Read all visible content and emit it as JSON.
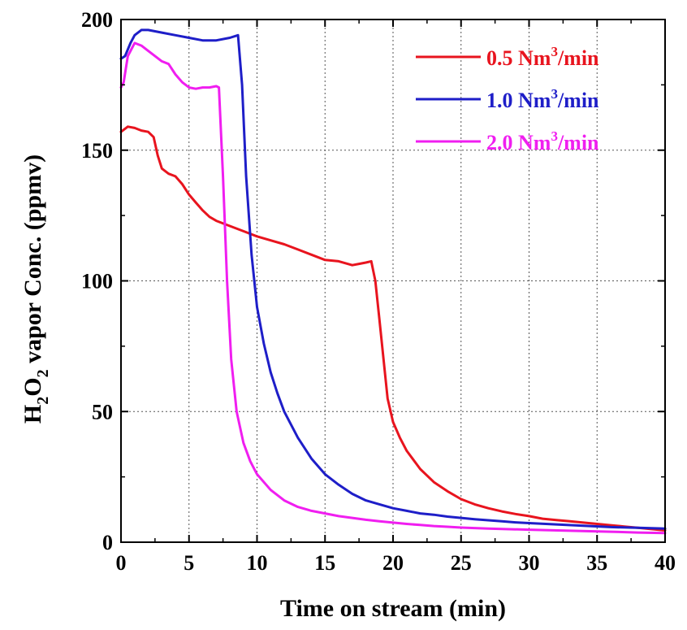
{
  "chart_data": {
    "type": "line",
    "title": "",
    "xlabel": "Time on stream (min)",
    "ylabel": {
      "parts": [
        {
          "text": "H",
          "sub": false
        },
        {
          "text": "2",
          "sub": true
        },
        {
          "text": "O",
          "sub": false
        },
        {
          "text": "2",
          "sub": true
        },
        {
          "text": " vapor Conc. (ppmv)",
          "sub": false
        }
      ],
      "plain": "H2O2 vapor Conc. (ppmv)"
    },
    "xlim": [
      0,
      40
    ],
    "ylim": [
      0,
      200
    ],
    "xticks": [
      0,
      5,
      10,
      15,
      20,
      25,
      30,
      35,
      40
    ],
    "yticks": [
      0,
      50,
      100,
      150,
      200
    ],
    "grid": true,
    "legend_position": "top-right",
    "series": [
      {
        "name": "0.5 Nm3/min",
        "label": {
          "base": "0.5 Nm",
          "sup": "3",
          "tail": "/min"
        },
        "color": "#e8141e",
        "points": [
          [
            0,
            157
          ],
          [
            0.5,
            159
          ],
          [
            1,
            158.5
          ],
          [
            1.5,
            157.5
          ],
          [
            2,
            157
          ],
          [
            2.4,
            155
          ],
          [
            2.7,
            148
          ],
          [
            3,
            143
          ],
          [
            3.5,
            141
          ],
          [
            4,
            140
          ],
          [
            4.5,
            137
          ],
          [
            5,
            133
          ],
          [
            5.5,
            130
          ],
          [
            6,
            127
          ],
          [
            6.5,
            124.5
          ],
          [
            7,
            123
          ],
          [
            8,
            121
          ],
          [
            9,
            119
          ],
          [
            10,
            117
          ],
          [
            11,
            115.5
          ],
          [
            12,
            114
          ],
          [
            13,
            112
          ],
          [
            14,
            110
          ],
          [
            15,
            108
          ],
          [
            16,
            107.5
          ],
          [
            17,
            106
          ],
          [
            17.5,
            106.5
          ],
          [
            18,
            107
          ],
          [
            18.4,
            107.5
          ],
          [
            18.7,
            100
          ],
          [
            19,
            85
          ],
          [
            19.3,
            70
          ],
          [
            19.6,
            55
          ],
          [
            20,
            46
          ],
          [
            20.5,
            40
          ],
          [
            21,
            35
          ],
          [
            22,
            28
          ],
          [
            23,
            23
          ],
          [
            24,
            19.5
          ],
          [
            25,
            16.5
          ],
          [
            26,
            14.5
          ],
          [
            27,
            13
          ],
          [
            28,
            11.8
          ],
          [
            29,
            10.8
          ],
          [
            30,
            10
          ],
          [
            31,
            9
          ],
          [
            32,
            8.5
          ],
          [
            33,
            8
          ],
          [
            34,
            7.5
          ],
          [
            35,
            7
          ],
          [
            36,
            6.5
          ],
          [
            37,
            6
          ],
          [
            38,
            5.5
          ],
          [
            39,
            5
          ],
          [
            40,
            4.5
          ]
        ]
      },
      {
        "name": "1.0 Nm3/min",
        "label": {
          "base": "1.0 Nm",
          "sup": "3",
          "tail": "/min"
        },
        "color": "#1e1ec8",
        "points": [
          [
            0,
            185
          ],
          [
            0.3,
            186
          ],
          [
            0.7,
            191
          ],
          [
            1,
            194
          ],
          [
            1.5,
            196
          ],
          [
            2,
            196
          ],
          [
            3,
            195
          ],
          [
            4,
            194
          ],
          [
            5,
            193
          ],
          [
            6,
            192
          ],
          [
            7,
            192
          ],
          [
            8,
            193
          ],
          [
            8.6,
            194
          ],
          [
            8.9,
            175
          ],
          [
            9.2,
            140
          ],
          [
            9.6,
            110
          ],
          [
            10,
            90
          ],
          [
            10.5,
            76
          ],
          [
            11,
            65
          ],
          [
            11.5,
            57
          ],
          [
            12,
            50
          ],
          [
            13,
            40
          ],
          [
            14,
            32
          ],
          [
            15,
            26
          ],
          [
            16,
            22
          ],
          [
            17,
            18.5
          ],
          [
            18,
            16
          ],
          [
            19,
            14.5
          ],
          [
            20,
            13
          ],
          [
            21,
            12
          ],
          [
            22,
            11
          ],
          [
            23,
            10.5
          ],
          [
            24,
            9.8
          ],
          [
            25,
            9.3
          ],
          [
            26,
            8.8
          ],
          [
            27,
            8.4
          ],
          [
            28,
            8
          ],
          [
            29,
            7.6
          ],
          [
            30,
            7.3
          ],
          [
            32,
            6.8
          ],
          [
            34,
            6.3
          ],
          [
            36,
            5.8
          ],
          [
            38,
            5.5
          ],
          [
            40,
            5.2
          ]
        ]
      },
      {
        "name": "2.0 Nm3/min",
        "label": {
          "base": "2.0 Nm",
          "sup": "3",
          "tail": "/min"
        },
        "color": "#f01ef0",
        "points": [
          [
            0,
            174
          ],
          [
            0.2,
            176
          ],
          [
            0.5,
            186
          ],
          [
            1,
            191
          ],
          [
            1.5,
            190
          ],
          [
            2,
            188
          ],
          [
            3,
            184
          ],
          [
            3.5,
            183
          ],
          [
            4,
            179
          ],
          [
            4.5,
            176
          ],
          [
            5,
            174
          ],
          [
            5.5,
            173.5
          ],
          [
            6,
            174
          ],
          [
            6.5,
            174
          ],
          [
            7,
            174.5
          ],
          [
            7.2,
            174
          ],
          [
            7.5,
            140
          ],
          [
            7.8,
            100
          ],
          [
            8.1,
            70
          ],
          [
            8.5,
            50
          ],
          [
            9,
            38
          ],
          [
            9.5,
            31
          ],
          [
            10,
            26
          ],
          [
            11,
            20
          ],
          [
            12,
            16
          ],
          [
            13,
            13.5
          ],
          [
            14,
            12
          ],
          [
            15,
            11
          ],
          [
            16,
            10
          ],
          [
            17,
            9.3
          ],
          [
            18,
            8.6
          ],
          [
            19,
            8
          ],
          [
            20,
            7.5
          ],
          [
            21,
            7
          ],
          [
            22,
            6.6
          ],
          [
            23,
            6.2
          ],
          [
            24,
            5.9
          ],
          [
            25,
            5.6
          ],
          [
            27,
            5.2
          ],
          [
            30,
            4.8
          ],
          [
            33,
            4.4
          ],
          [
            36,
            4
          ],
          [
            38,
            3.7
          ],
          [
            40,
            3.5
          ]
        ]
      }
    ]
  }
}
